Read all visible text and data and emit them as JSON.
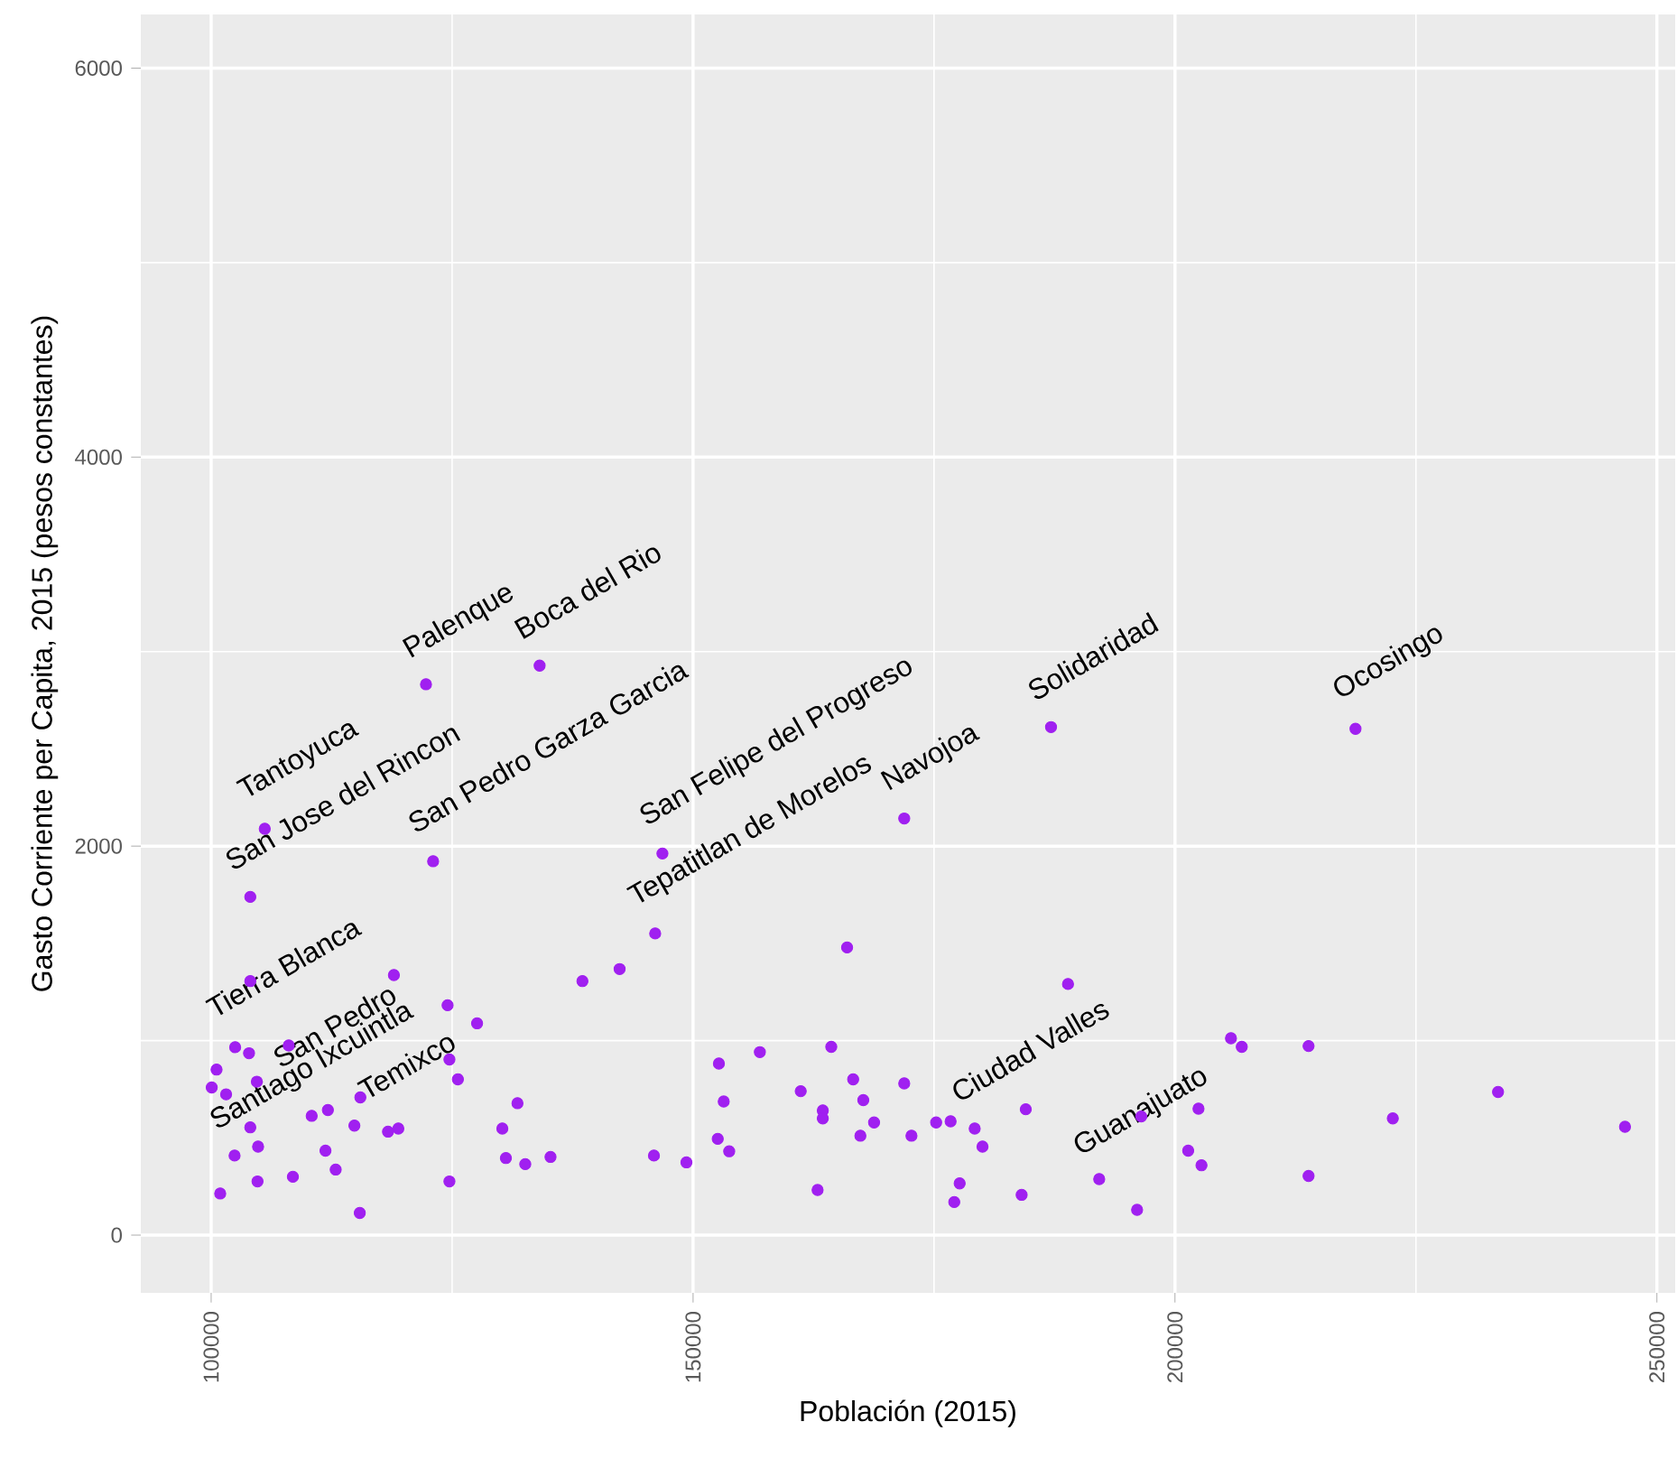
{
  "chart_data": {
    "type": "scatter",
    "xlabel": "Población (2015)",
    "ylabel": "Gasto Corriente per Capita, 2015 (pesos constantes)",
    "xlim": [
      92700,
      251900
    ],
    "ylim": [
      -297,
      6276
    ],
    "xticks": [
      100000,
      150000,
      200000,
      250000
    ],
    "yticks": [
      0,
      2000,
      4000,
      6000
    ],
    "grid": true,
    "marker": "circle",
    "series": [
      {
        "color": "#a020f0",
        "x": [
          105560,
          122290,
          134080,
          104060,
          123030,
          146820,
          146070,
          171910,
          187140,
          218730,
          104060,
          118960,
          108050,
          115480,
          179220,
          196500,
          124530,
          127590,
          102490,
          103930,
          100560,
          100060,
          101550,
          104740,
          124720,
          125600,
          131780,
          104060,
          110430,
          112110,
          114860,
          118350,
          119420,
          130210,
          102430,
          104870,
          111860,
          112920,
          130580,
          132590,
          100940,
          104810,
          108480,
          124720,
          115420,
          138520,
          142380,
          165980,
          135210,
          145940,
          149310,
          152680,
          156930,
          153180,
          152560,
          153750,
          161170,
          164340,
          166610,
          163460,
          163460,
          167660,
          168780,
          167360,
          162920,
          171910,
          172660,
          175220,
          176720,
          177660,
          177100,
          180030,
          188900,
          184520,
          184090,
          192140,
          196070,
          202440,
          201370,
          202750,
          205810,
          206930,
          213860,
          213860,
          222600,
          233520,
          246690
        ],
        "values": [
          2089,
          2832,
          2928,
          1739,
          1922,
          1962,
          1551,
          2142,
          2612,
          2603,
          1306,
          1337,
          975,
          708,
          548,
          610,
          1182,
          1089,
          966,
          935,
          851,
          759,
          724,
          789,
          903,
          801,
          678,
          554,
          613,
          643,
          563,
          532,
          548,
          548,
          409,
          455,
          434,
          337,
          396,
          365,
          214,
          276,
          300,
          276,
          114,
          1306,
          1368,
          1479,
          402,
          409,
          374,
          882,
          941,
          687,
          495,
          431,
          740,
          968,
          801,
          641,
          600,
          694,
          579,
          511,
          232,
          780,
          511,
          579,
          585,
          266,
          170,
          455,
          1291,
          647,
          207,
          288,
          130,
          650,
          434,
          359,
          1012,
          968,
          972,
          304,
          600,
          736,
          557
        ]
      }
    ],
    "annotations": [
      {
        "text": "Tantoyuca",
        "x": 105560,
        "y": 2089
      },
      {
        "text": "Palenque",
        "x": 122290,
        "y": 2832
      },
      {
        "text": "Boca del Rio",
        "x": 134080,
        "y": 2928
      },
      {
        "text": "San Jose del Rincon",
        "x": 104060,
        "y": 1739
      },
      {
        "text": "San Pedro Garza Garcia",
        "x": 123030,
        "y": 1922
      },
      {
        "text": "San Felipe del Progreso",
        "x": 146820,
        "y": 1962
      },
      {
        "text": "Tepatitlan de Morelos",
        "x": 146070,
        "y": 1551
      },
      {
        "text": "Navojoa",
        "x": 171910,
        "y": 2142
      },
      {
        "text": "Solidaridad",
        "x": 187140,
        "y": 2612
      },
      {
        "text": "Ocosingo",
        "x": 218730,
        "y": 2603
      },
      {
        "text": "Tierra Blanca",
        "x": 104060,
        "y": 1306
      },
      {
        "text": "San Pedro",
        "x": 118960,
        "y": 1337
      },
      {
        "text": "Santiago Ixcuintla",
        "x": 108050,
        "y": 975
      },
      {
        "text": "Temixco",
        "x": 115480,
        "y": 708
      },
      {
        "text": "Ciudad Valles",
        "x": 179220,
        "y": 548
      },
      {
        "text": "Guanajuato",
        "x": 196500,
        "y": 610
      }
    ]
  }
}
